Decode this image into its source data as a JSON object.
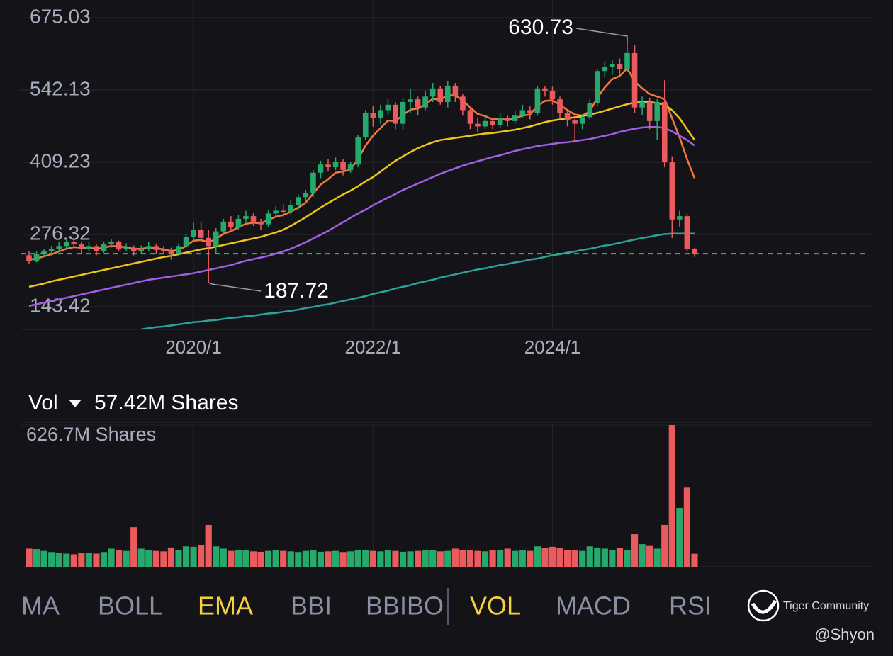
{
  "chart_data": [
    {
      "type": "candlestick",
      "categories": [
        null,
        null,
        null,
        null,
        null,
        null,
        null,
        null,
        null,
        null,
        null,
        null,
        null,
        null,
        null,
        null,
        null,
        null,
        null,
        null,
        null,
        null,
        "2020/1",
        null,
        null,
        null,
        null,
        null,
        null,
        null,
        null,
        null,
        null,
        null,
        null,
        null,
        null,
        null,
        null,
        null,
        null,
        null,
        null,
        null,
        null,
        null,
        "2022/1",
        null,
        null,
        null,
        null,
        null,
        null,
        null,
        null,
        null,
        null,
        null,
        null,
        null,
        null,
        null,
        null,
        null,
        null,
        null,
        null,
        null,
        null,
        null,
        "2024/1",
        null,
        null,
        null,
        null,
        null,
        null,
        null,
        null,
        null,
        null,
        null,
        null,
        null,
        null,
        null,
        null,
        null,
        null,
        null
      ],
      "open": [
        238,
        228,
        240,
        245,
        250,
        255,
        262,
        258,
        250,
        255,
        246,
        258,
        262,
        250,
        252,
        245,
        250,
        255,
        248,
        246,
        240,
        255,
        272,
        285,
        270,
        255,
        282,
        300,
        290,
        305,
        310,
        300,
        295,
        315,
        320,
        318,
        330,
        345,
        352,
        390,
        405,
        400,
        410,
        395,
        405,
        455,
        500,
        490,
        505,
        515,
        480,
        520,
        525,
        510,
        530,
        545,
        520,
        550,
        530,
        505,
        480,
        475,
        485,
        478,
        490,
        485,
        495,
        505,
        500,
        545,
        540,
        525,
        499,
        486,
        480,
        492,
        518,
        577,
        584,
        590,
        580,
        610,
        510,
        520,
        485,
        520,
        409,
        304,
        310,
        249
      ],
      "high": [
        245,
        245,
        250,
        255,
        262,
        268,
        270,
        262,
        262,
        258,
        262,
        268,
        265,
        260,
        256,
        256,
        262,
        258,
        255,
        252,
        260,
        278,
        298,
        300,
        285,
        288,
        305,
        310,
        312,
        320,
        315,
        305,
        322,
        328,
        332,
        340,
        350,
        358,
        395,
        412,
        415,
        418,
        415,
        410,
        460,
        505,
        512,
        515,
        525,
        520,
        528,
        545,
        530,
        540,
        555,
        550,
        558,
        555,
        535,
        512,
        490,
        495,
        490,
        500,
        495,
        505,
        515,
        512,
        550,
        550,
        548,
        530,
        505,
        495,
        498,
        525,
        580,
        595,
        598,
        600,
        630.73,
        625,
        530,
        528,
        525,
        560,
        420,
        320,
        315,
        252
      ],
      "low": [
        222,
        225,
        235,
        240,
        245,
        250,
        252,
        240,
        245,
        238,
        242,
        252,
        245,
        245,
        238,
        240,
        246,
        240,
        240,
        230,
        236,
        252,
        265,
        262,
        187.72,
        240,
        275,
        282,
        285,
        298,
        292,
        285,
        290,
        308,
        308,
        312,
        320,
        335,
        345,
        380,
        392,
        395,
        385,
        390,
        400,
        450,
        475,
        480,
        495,
        470,
        470,
        500,
        495,
        505,
        520,
        515,
        510,
        520,
        495,
        470,
        465,
        470,
        470,
        472,
        475,
        480,
        490,
        488,
        495,
        530,
        515,
        490,
        475,
        445,
        470,
        488,
        512,
        565,
        570,
        572,
        575,
        500,
        495,
        470,
        450,
        400,
        270,
        290,
        245,
        235
      ],
      "close": [
        228,
        240,
        245,
        250,
        255,
        262,
        258,
        250,
        255,
        246,
        258,
        262,
        250,
        252,
        245,
        250,
        255,
        248,
        246,
        240,
        255,
        272,
        285,
        270,
        255,
        282,
        300,
        290,
        305,
        310,
        300,
        295,
        315,
        320,
        318,
        330,
        345,
        352,
        390,
        405,
        400,
        410,
        395,
        405,
        455,
        500,
        490,
        505,
        515,
        480,
        520,
        525,
        510,
        530,
        545,
        520,
        550,
        530,
        505,
        480,
        475,
        485,
        478,
        490,
        485,
        495,
        505,
        500,
        545,
        540,
        525,
        499,
        486,
        480,
        492,
        518,
        577,
        584,
        590,
        580,
        610,
        510,
        520,
        485,
        520,
        409,
        304,
        310,
        249,
        241
      ],
      "up_color": "#26a96c",
      "down_color": "#eb5a5d",
      "ylim": [
        101.7,
        707.6
      ],
      "yticks": [
        675.03,
        542.13,
        409.23,
        276.32,
        143.42
      ],
      "grid": true,
      "xgrid": true,
      "mark_extremes": true,
      "last_price_line": true,
      "lines": [
        {
          "color": "#f47a3a",
          "values": [
            230,
            232,
            236,
            240,
            245,
            250,
            253,
            252,
            252,
            250,
            252,
            255,
            254,
            253,
            250,
            250,
            252,
            251,
            249,
            246,
            248,
            255,
            265,
            266,
            262,
            268,
            278,
            282,
            290,
            296,
            298,
            297,
            303,
            309,
            312,
            318,
            326,
            335,
            352,
            368,
            378,
            390,
            392,
            396,
            415,
            440,
            458,
            472,
            486,
            485,
            496,
            506,
            508,
            516,
            526,
            524,
            533,
            532,
            523,
            510,
            498,
            494,
            488,
            489,
            487,
            490,
            495,
            497,
            513,
            522,
            523,
            515,
            505,
            497,
            495,
            503,
            528,
            547,
            562,
            568,
            582,
            558,
            545,
            535,
            530,
            525,
            490,
            455,
            415,
            380
          ]
        },
        {
          "color": "#f0c419",
          "values": [
            180,
            183,
            186,
            190,
            193,
            196,
            199,
            202,
            205,
            208,
            211,
            214,
            217,
            220,
            223,
            226,
            229,
            232,
            235,
            237,
            240,
            243,
            246,
            249,
            251,
            254,
            257,
            260,
            263,
            266,
            269,
            272,
            276,
            280,
            285,
            292,
            300,
            308,
            317,
            326,
            334,
            342,
            350,
            357,
            365,
            374,
            382,
            392,
            402,
            412,
            420,
            428,
            435,
            441,
            446,
            450,
            452,
            454,
            456,
            458,
            460,
            462,
            463,
            465,
            467,
            469,
            472,
            475,
            479,
            483,
            486,
            488,
            490,
            492,
            494,
            497,
            500,
            504,
            508,
            512,
            516,
            519,
            520,
            520,
            518,
            515,
            505,
            490,
            470,
            450
          ]
        },
        {
          "color": "#a25ee6",
          "values": [
            145,
            148,
            151,
            154,
            157,
            160,
            163,
            166,
            169,
            172,
            175,
            178,
            181,
            184,
            187,
            190,
            193,
            195,
            197,
            199,
            201,
            203,
            205,
            208,
            211,
            214,
            217,
            220,
            224,
            228,
            231,
            234,
            237,
            241,
            245,
            250,
            256,
            262,
            269,
            276,
            283,
            291,
            299,
            307,
            315,
            322,
            330,
            337,
            344,
            351,
            358,
            364,
            370,
            376,
            382,
            388,
            393,
            398,
            403,
            407,
            411,
            415,
            419,
            422,
            426,
            430,
            433,
            436,
            439,
            441,
            443,
            445,
            446,
            448,
            450,
            452,
            455,
            458,
            461,
            465,
            468,
            471,
            473,
            474,
            474,
            472,
            466,
            458,
            450,
            440
          ]
        },
        {
          "color": "#2ba39a",
          "values": [
            null,
            null,
            null,
            null,
            null,
            null,
            null,
            null,
            null,
            null,
            null,
            null,
            null,
            null,
            null,
            102,
            104,
            106,
            107,
            109,
            111,
            113,
            115,
            116,
            118,
            119,
            121,
            123,
            124,
            126,
            127,
            129,
            131,
            132,
            134,
            136,
            138,
            141,
            143,
            146,
            148,
            151,
            154,
            157,
            160,
            163,
            167,
            170,
            173,
            177,
            180,
            183,
            187,
            190,
            193,
            197,
            200,
            203,
            206,
            209,
            212,
            214,
            217,
            220,
            222,
            225,
            227,
            230,
            232,
            235,
            238,
            240,
            243,
            245,
            248,
            250,
            253,
            256,
            258,
            261,
            264,
            267,
            270,
            272,
            275,
            277,
            278,
            278,
            278,
            278
          ]
        }
      ]
    },
    {
      "type": "bar",
      "title": "Vol",
      "values": [
        80,
        78,
        70,
        65,
        62,
        58,
        55,
        60,
        62,
        58,
        65,
        80,
        75,
        70,
        175,
        80,
        72,
        70,
        68,
        85,
        75,
        90,
        88,
        95,
        185,
        90,
        80,
        70,
        75,
        72,
        68,
        66,
        70,
        72,
        70,
        68,
        65,
        70,
        72,
        66,
        68,
        70,
        65,
        68,
        72,
        75,
        70,
        68,
        72,
        70,
        66,
        68,
        70,
        72,
        75,
        68,
        70,
        80,
        75,
        72,
        70,
        68,
        72,
        75,
        80,
        70,
        72,
        70,
        90,
        82,
        88,
        82,
        75,
        72,
        70,
        90,
        85,
        80,
        75,
        82,
        72,
        144,
        100,
        92,
        80,
        185,
        626.7,
        260,
        350,
        57.42
      ],
      "last_value_label": "57.42M Shares",
      "ylim": [
        0,
        626.7
      ],
      "yticks": [
        {
          "value": 626.7,
          "label": "626.7M Shares"
        }
      ]
    }
  ],
  "indicator_tabs": [
    {
      "label": "MA",
      "active": false
    },
    {
      "label": "BOLL",
      "active": false
    },
    {
      "label": "EMA",
      "active": true
    },
    {
      "label": "BBI",
      "active": false
    },
    {
      "label": "BBIBO",
      "active": false
    },
    {
      "label": "VOL",
      "active": true
    },
    {
      "label": "MACD",
      "active": false
    },
    {
      "label": "RSI",
      "active": false
    }
  ],
  "brand": "Tiger Community",
  "user": "@Shyon"
}
